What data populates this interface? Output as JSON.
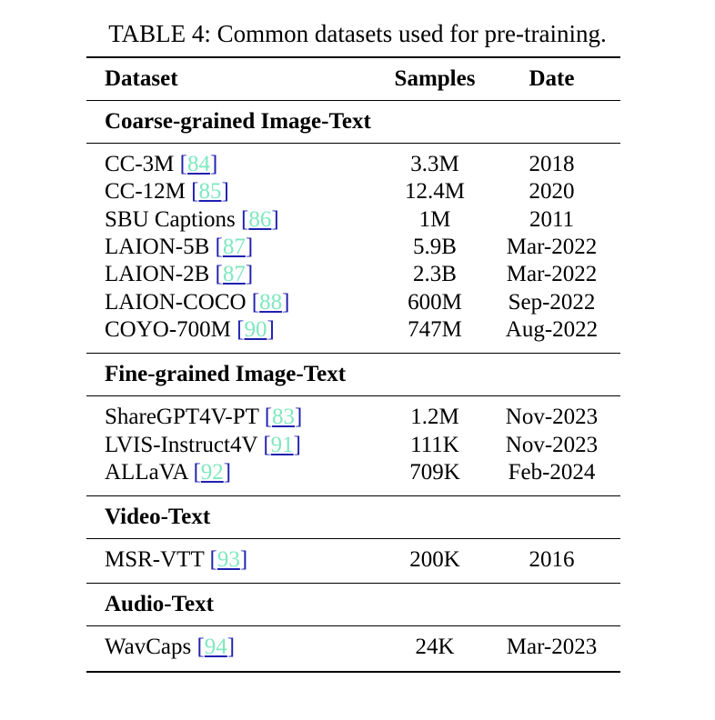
{
  "caption": "TABLE 4: Common datasets used for pre-training.",
  "headers": [
    "Dataset",
    "Samples",
    "Date"
  ],
  "sections": [
    {
      "title": "Coarse-grained Image-Text",
      "rows": [
        {
          "name": "CC-3M",
          "ref": "84",
          "samples": "3.3M",
          "date": "2018"
        },
        {
          "name": "CC-12M",
          "ref": "85",
          "samples": "12.4M",
          "date": "2020"
        },
        {
          "name": "SBU Captions",
          "ref": "86",
          "samples": "1M",
          "date": "2011"
        },
        {
          "name": "LAION-5B",
          "ref": "87",
          "samples": "5.9B",
          "date": "Mar-2022"
        },
        {
          "name": "LAION-2B",
          "ref": "87",
          "samples": "2.3B",
          "date": "Mar-2022"
        },
        {
          "name": "LAION-COCO",
          "ref": "88",
          "samples": "600M",
          "date": "Sep-2022"
        },
        {
          "name": "COYO-700M",
          "ref": "90",
          "samples": "747M",
          "date": "Aug-2022"
        }
      ]
    },
    {
      "title": "Fine-grained Image-Text",
      "rows": [
        {
          "name": "ShareGPT4V-PT",
          "ref": "83",
          "samples": "1.2M",
          "date": "Nov-2023"
        },
        {
          "name": "LVIS-Instruct4V",
          "ref": "91",
          "samples": "111K",
          "date": "Nov-2023"
        },
        {
          "name": "ALLaVA",
          "ref": "92",
          "samples": "709K",
          "date": "Feb-2024"
        }
      ]
    },
    {
      "title": "Video-Text",
      "rows": [
        {
          "name": "MSR-VTT",
          "ref": "93",
          "samples": "200K",
          "date": "2016"
        }
      ]
    },
    {
      "title": "Audio-Text",
      "rows": [
        {
          "name": "WavCaps",
          "ref": "94",
          "samples": "24K",
          "date": "Mar-2023"
        }
      ]
    }
  ]
}
